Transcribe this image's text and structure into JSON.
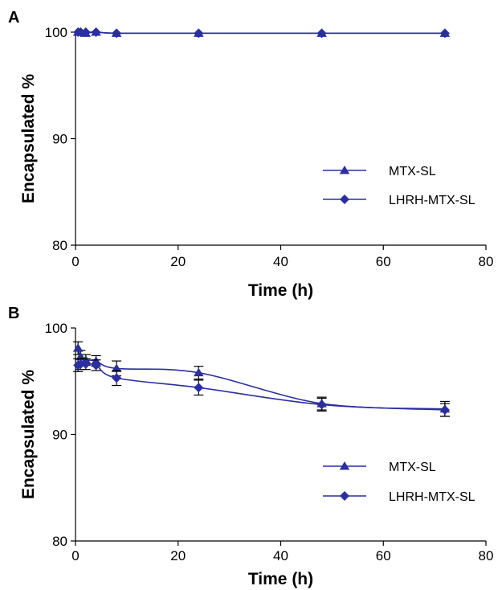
{
  "colors": {
    "series": "#2b2f9e",
    "axis": "#000000",
    "error_bar": "#000000"
  },
  "chart_data": [
    {
      "panel": "A",
      "type": "line",
      "xlabel": "Time (h)",
      "ylabel": "Encapsulated %",
      "xlim": [
        0,
        80
      ],
      "ylim": [
        80,
        100
      ],
      "xticks": [
        "0",
        "20",
        "40",
        "60",
        "80"
      ],
      "yticks": [
        "80",
        "90",
        "100"
      ],
      "legend_position": "right",
      "grid": false,
      "series": [
        {
          "name": "MTX-SL",
          "marker": "triangle",
          "x": [
            0.5,
            1,
            2,
            4,
            8,
            24,
            48,
            72
          ],
          "y": [
            100,
            100,
            99.9,
            100,
            99.9,
            99.9,
            99.9,
            99.9
          ]
        },
        {
          "name": "LHRH-MTX-SL",
          "marker": "diamond",
          "x": [
            0.5,
            1,
            2,
            4,
            8,
            24,
            48,
            72
          ],
          "y": [
            100,
            100,
            100,
            100,
            99.9,
            99.9,
            99.9,
            99.9
          ]
        }
      ]
    },
    {
      "panel": "B",
      "type": "line",
      "xlabel": "Time (h)",
      "ylabel": "Encapsulated %",
      "xlim": [
        0,
        80
      ],
      "ylim": [
        80,
        100
      ],
      "xticks": [
        "0",
        "20",
        "40",
        "60",
        "80"
      ],
      "yticks": [
        "80",
        "90",
        "100"
      ],
      "legend_position": "right",
      "grid": false,
      "series": [
        {
          "name": "MTX-SL",
          "marker": "triangle",
          "x": [
            0.5,
            1,
            2,
            4,
            8,
            24,
            48,
            72
          ],
          "y": [
            98.1,
            97.3,
            97.0,
            96.9,
            96.2,
            95.8,
            92.9,
            92.4
          ],
          "err": [
            0.6,
            0.6,
            0.5,
            0.5,
            0.7,
            0.6,
            0.6,
            0.7
          ]
        },
        {
          "name": "LHRH-MTX-SL",
          "marker": "diamond",
          "x": [
            0.5,
            1,
            2,
            4,
            8,
            24,
            48,
            72
          ],
          "y": [
            96.5,
            96.6,
            96.6,
            96.5,
            95.3,
            94.4,
            92.8,
            92.3
          ],
          "err": [
            0.6,
            0.5,
            0.5,
            0.5,
            0.7,
            0.7,
            0.6,
            0.6
          ]
        }
      ]
    }
  ]
}
